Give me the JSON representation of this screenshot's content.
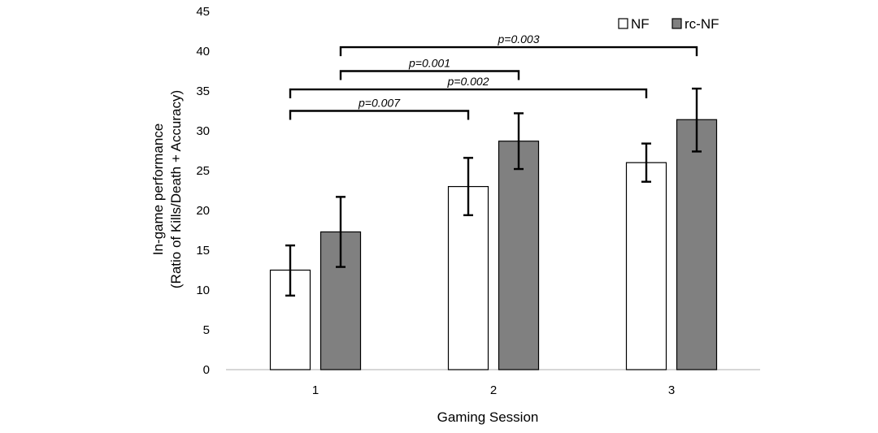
{
  "chart_data": {
    "type": "bar",
    "xlabel": "Gaming Session",
    "ylabel": [
      "In-game performance",
      "(Ratio of Kills/Death + Accuracy)"
    ],
    "ylim": [
      0,
      45
    ],
    "yticks": [
      0,
      5,
      10,
      15,
      20,
      25,
      30,
      35,
      40,
      45
    ],
    "categories": [
      "1",
      "2",
      "3"
    ],
    "series": [
      {
        "name": "NF",
        "color": "#ffffff",
        "values": [
          12.5,
          23.0,
          26.0
        ],
        "error_low": [
          9.3,
          19.4,
          23.6
        ],
        "error_high": [
          15.6,
          26.6,
          28.4
        ]
      },
      {
        "name": "rc-NF",
        "color": "#808080",
        "values": [
          17.3,
          28.7,
          31.4
        ],
        "error_low": [
          12.9,
          25.2,
          27.4
        ],
        "error_high": [
          21.7,
          32.2,
          35.3
        ]
      }
    ],
    "grid": false,
    "legend_position": "top-right",
    "significance": [
      {
        "label": "p=0.003",
        "from": {
          "category": "1",
          "series": "rc-NF"
        },
        "to": {
          "category": "3",
          "series": "rc-NF"
        },
        "level": 40.5
      },
      {
        "label": "p=0.001",
        "from": {
          "category": "1",
          "series": "rc-NF"
        },
        "to": {
          "category": "2",
          "series": "rc-NF"
        },
        "level": 37.5
      },
      {
        "label": "p=0.002",
        "from": {
          "category": "1",
          "series": "NF"
        },
        "to": {
          "category": "3",
          "series": "NF"
        },
        "level": 35.2
      },
      {
        "label": "p=0.007",
        "from": {
          "category": "1",
          "series": "NF"
        },
        "to": {
          "category": "2",
          "series": "NF"
        },
        "level": 32.5
      }
    ]
  }
}
